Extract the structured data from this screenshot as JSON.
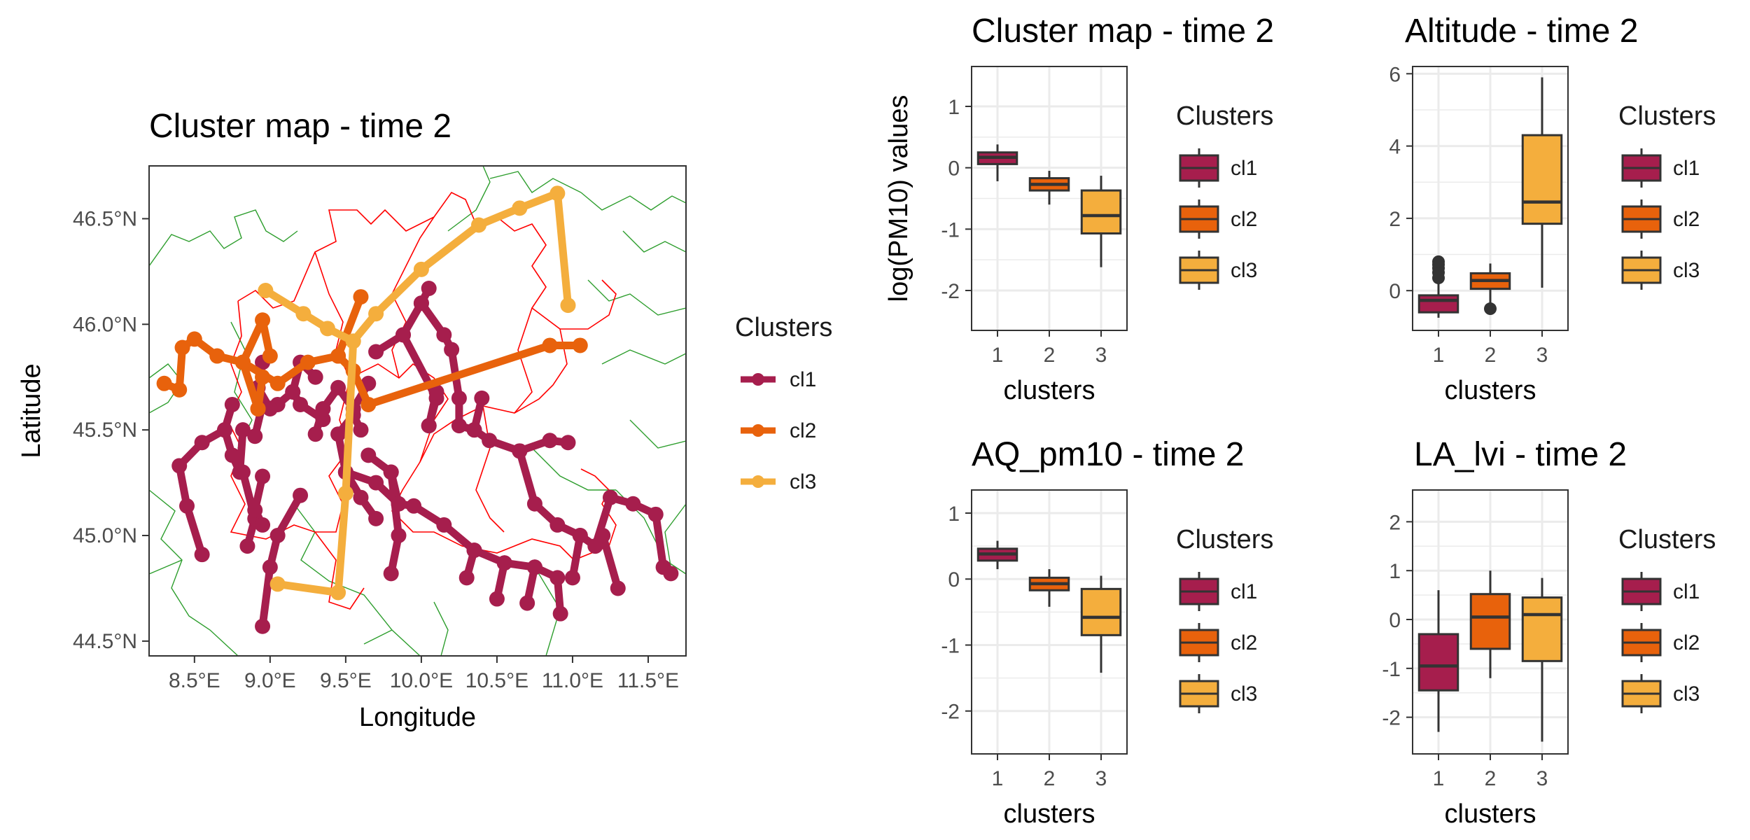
{
  "colors": {
    "cl1": "#A61E4D",
    "cl2": "#E8620C",
    "cl3": "#F4AE3D",
    "box_outline": "#333333",
    "region_border": "#FF0000",
    "province_border": "#2E9E2E",
    "grid": "#EBEBEB",
    "panel_border": "#333333"
  },
  "chart_data": [
    {
      "type": "scatter",
      "subtype": "cluster-network-map",
      "title": "Cluster map - time 2",
      "xlabel": "Longitude",
      "ylabel": "Latitude",
      "xlim": [
        8.2,
        11.75
      ],
      "ylim": [
        44.43,
        46.75
      ],
      "grid": false,
      "x_ticks": [
        {
          "value": 8.5,
          "label": "8.5°E"
        },
        {
          "value": 9.0,
          "label": "9.0°E"
        },
        {
          "value": 9.5,
          "label": "9.5°E"
        },
        {
          "value": 10.0,
          "label": "10.0°E"
        },
        {
          "value": 10.5,
          "label": "10.5°E"
        },
        {
          "value": 11.0,
          "label": "11.0°E"
        },
        {
          "value": 11.5,
          "label": "11.5°E"
        }
      ],
      "y_ticks": [
        {
          "value": 44.5,
          "label": "44.5°N"
        },
        {
          "value": 45.0,
          "label": "45.0°N"
        },
        {
          "value": 45.5,
          "label": "45.5°N"
        },
        {
          "value": 46.0,
          "label": "46.0°N"
        },
        {
          "value": 46.5,
          "label": "46.5°N"
        }
      ],
      "legend": {
        "title": "Clusters",
        "position": "right",
        "entries": [
          "cl1",
          "cl2",
          "cl3"
        ]
      },
      "series": [
        {
          "name": "cl1",
          "color_key": "cl1",
          "paths": [
            [
              [
                8.55,
                44.91
              ],
              [
                8.45,
                45.14
              ],
              [
                8.4,
                45.33
              ],
              [
                8.55,
                45.44
              ],
              [
                8.7,
                45.5
              ],
              [
                8.75,
                45.62
              ]
            ],
            [
              [
                8.7,
                45.5
              ],
              [
                8.75,
                45.38
              ],
              [
                8.8,
                45.3
              ],
              [
                8.82,
                45.5
              ]
            ],
            [
              [
                8.9,
                45.47
              ],
              [
                8.95,
                45.62
              ],
              [
                9.05,
                45.62
              ],
              [
                9.15,
                45.68
              ],
              [
                9.2,
                45.62
              ],
              [
                9.35,
                45.55
              ]
            ],
            [
              [
                9.15,
                45.68
              ],
              [
                9.2,
                45.82
              ],
              [
                9.3,
                45.75
              ]
            ],
            [
              [
                9.0,
                45.6
              ],
              [
                8.92,
                45.7
              ],
              [
                8.95,
                45.82
              ]
            ],
            [
              [
                8.82,
                45.3
              ],
              [
                8.9,
                45.08
              ],
              [
                8.85,
                44.95
              ]
            ],
            [
              [
                8.95,
                45.28
              ],
              [
                8.9,
                45.12
              ],
              [
                8.95,
                45.05
              ]
            ],
            [
              [
                8.95,
                44.57
              ],
              [
                9.0,
                44.85
              ],
              [
                9.05,
                45.0
              ],
              [
                9.2,
                45.19
              ]
            ],
            [
              [
                9.3,
                45.48
              ],
              [
                9.35,
                45.6
              ],
              [
                9.45,
                45.7
              ],
              [
                9.55,
                45.6
              ],
              [
                9.65,
                45.72
              ]
            ],
            [
              [
                9.6,
                45.5
              ],
              [
                9.55,
                45.57
              ],
              [
                9.45,
                45.48
              ],
              [
                9.5,
                45.3
              ]
            ],
            [
              [
                9.5,
                45.3
              ],
              [
                9.6,
                45.18
              ],
              [
                9.7,
                45.08
              ]
            ],
            [
              [
                9.5,
                45.3
              ],
              [
                9.7,
                45.25
              ],
              [
                9.85,
                45.15
              ],
              [
                9.95,
                45.14
              ],
              [
                10.15,
                45.05
              ],
              [
                10.35,
                44.93
              ],
              [
                10.55,
                44.87
              ],
              [
                10.75,
                44.85
              ],
              [
                10.9,
                44.8
              ],
              [
                10.92,
                44.63
              ]
            ],
            [
              [
                9.65,
                45.38
              ],
              [
                9.8,
                45.3
              ],
              [
                9.85,
                45.15
              ]
            ],
            [
              [
                9.8,
                45.3
              ],
              [
                9.85,
                45.0
              ],
              [
                9.8,
                44.82
              ]
            ],
            [
              [
                10.35,
                44.93
              ],
              [
                10.3,
                44.8
              ]
            ],
            [
              [
                10.55,
                44.87
              ],
              [
                10.5,
                44.7
              ]
            ],
            [
              [
                10.75,
                44.85
              ],
              [
                10.7,
                44.68
              ]
            ],
            [
              [
                9.7,
                45.87
              ],
              [
                9.88,
                45.95
              ],
              [
                10.0,
                46.1
              ],
              [
                10.05,
                46.17
              ]
            ],
            [
              [
                9.88,
                45.95
              ],
              [
                10.1,
                45.65
              ],
              [
                10.05,
                45.52
              ]
            ],
            [
              [
                10.05,
                45.52
              ],
              [
                10.1,
                45.68
              ]
            ],
            [
              [
                10.0,
                46.1
              ],
              [
                10.15,
                45.95
              ],
              [
                10.2,
                45.88
              ],
              [
                10.25,
                45.65
              ],
              [
                10.25,
                45.52
              ],
              [
                10.35,
                45.5
              ],
              [
                10.4,
                45.65
              ]
            ],
            [
              [
                10.35,
                45.5
              ],
              [
                10.45,
                45.45
              ],
              [
                10.65,
                45.4
              ],
              [
                10.85,
                45.45
              ],
              [
                10.97,
                45.44
              ]
            ],
            [
              [
                10.65,
                45.4
              ],
              [
                10.75,
                45.15
              ],
              [
                10.9,
                45.05
              ],
              [
                11.05,
                45.0
              ],
              [
                11.0,
                44.8
              ]
            ],
            [
              [
                11.05,
                45.0
              ],
              [
                11.15,
                44.95
              ],
              [
                11.2,
                45.0
              ],
              [
                11.3,
                44.75
              ]
            ],
            [
              [
                11.15,
                44.95
              ],
              [
                11.25,
                45.18
              ],
              [
                11.4,
                45.15
              ],
              [
                11.55,
                45.1
              ],
              [
                11.6,
                44.85
              ],
              [
                11.65,
                44.82
              ]
            ]
          ]
        },
        {
          "name": "cl2",
          "color_key": "cl2",
          "paths": [
            [
              [
                8.3,
                45.72
              ],
              [
                8.4,
                45.69
              ],
              [
                8.42,
                45.89
              ],
              [
                8.5,
                45.93
              ],
              [
                8.65,
                45.85
              ],
              [
                8.82,
                45.82
              ],
              [
                8.95,
                46.02
              ],
              [
                9.0,
                45.85
              ]
            ],
            [
              [
                8.82,
                45.82
              ],
              [
                8.92,
                45.6
              ]
            ],
            [
              [
                8.92,
                45.6
              ],
              [
                8.95,
                45.75
              ]
            ],
            [
              [
                8.82,
                45.82
              ],
              [
                9.05,
                45.72
              ],
              [
                9.25,
                45.82
              ],
              [
                9.45,
                45.85
              ],
              [
                9.6,
                46.13
              ]
            ],
            [
              [
                9.45,
                45.85
              ],
              [
                9.55,
                45.78
              ],
              [
                9.65,
                45.62
              ],
              [
                10.85,
                45.9
              ],
              [
                11.05,
                45.9
              ]
            ]
          ]
        },
        {
          "name": "cl3",
          "color_key": "cl3",
          "paths": [
            [
              [
                8.97,
                46.16
              ],
              [
                9.22,
                46.05
              ],
              [
                9.38,
                45.98
              ],
              [
                9.55,
                45.92
              ],
              [
                9.7,
                46.05
              ],
              [
                10.0,
                46.26
              ],
              [
                10.38,
                46.47
              ],
              [
                10.65,
                46.55
              ],
              [
                10.9,
                46.62
              ],
              [
                10.97,
                46.09
              ]
            ],
            [
              [
                9.55,
                45.92
              ],
              [
                9.5,
                45.2
              ],
              [
                9.45,
                44.73
              ],
              [
                9.05,
                44.77
              ]
            ]
          ]
        }
      ]
    },
    {
      "type": "box",
      "title": "Cluster map - time 2",
      "xlabel": "clusters",
      "ylabel": "log(PM10) values",
      "categories": [
        "1",
        "2",
        "3"
      ],
      "ylim": [
        -2.65,
        1.65
      ],
      "y_ticks": [
        -2,
        -1,
        0,
        1
      ],
      "y_tick_labels": [
        "-2",
        "-1",
        "0",
        "1"
      ],
      "legend": {
        "title": "Clusters",
        "position": "right",
        "entries": [
          "cl1",
          "cl2",
          "cl3"
        ]
      },
      "boxes": [
        {
          "name": "cl1",
          "color_key": "cl1",
          "min": -0.22,
          "q1": 0.06,
          "median": 0.17,
          "q3": 0.25,
          "max": 0.38,
          "outliers": []
        },
        {
          "name": "cl2",
          "color_key": "cl2",
          "min": -0.6,
          "q1": -0.37,
          "median": -0.27,
          "q3": -0.17,
          "max": -0.05,
          "outliers": []
        },
        {
          "name": "cl3",
          "color_key": "cl3",
          "min": -1.62,
          "q1": -1.07,
          "median": -0.78,
          "q3": -0.37,
          "max": -0.13,
          "outliers": []
        }
      ]
    },
    {
      "type": "box",
      "title": "Altitude - time 2",
      "xlabel": "clusters",
      "ylabel": "",
      "categories": [
        "1",
        "2",
        "3"
      ],
      "ylim": [
        -1.1,
        6.2
      ],
      "y_ticks": [
        0,
        2,
        4,
        6
      ],
      "y_tick_labels": [
        "0",
        "2",
        "4",
        "6"
      ],
      "legend": {
        "title": "Clusters",
        "position": "right",
        "entries": [
          "cl1",
          "cl2",
          "cl3"
        ]
      },
      "boxes": [
        {
          "name": "cl1",
          "color_key": "cl1",
          "min": -0.75,
          "q1": -0.6,
          "median": -0.27,
          "q3": -0.13,
          "max": 0.22,
          "outliers": [
            0.35,
            0.5,
            0.62,
            0.72,
            0.8
          ]
        },
        {
          "name": "cl2",
          "color_key": "cl2",
          "min": -0.35,
          "q1": 0.05,
          "median": 0.28,
          "q3": 0.48,
          "max": 0.75,
          "outliers": [
            -0.5
          ]
        },
        {
          "name": "cl3",
          "color_key": "cl3",
          "min": 0.08,
          "q1": 1.85,
          "median": 2.45,
          "q3": 4.3,
          "max": 5.9,
          "outliers": []
        }
      ]
    },
    {
      "type": "box",
      "title": "AQ_pm10 - time 2",
      "xlabel": "clusters",
      "ylabel": "",
      "categories": [
        "1",
        "2",
        "3"
      ],
      "ylim": [
        -2.65,
        1.35
      ],
      "y_ticks": [
        -2,
        -1,
        0,
        1
      ],
      "y_tick_labels": [
        "-2",
        "-1",
        "0",
        "1"
      ],
      "legend": {
        "title": "Clusters",
        "position": "right",
        "entries": [
          "cl1",
          "cl2",
          "cl3"
        ]
      },
      "boxes": [
        {
          "name": "cl1",
          "color_key": "cl1",
          "min": 0.15,
          "q1": 0.28,
          "median": 0.38,
          "q3": 0.46,
          "max": 0.58,
          "outliers": []
        },
        {
          "name": "cl2",
          "color_key": "cl2",
          "min": -0.42,
          "q1": -0.17,
          "median": -0.07,
          "q3": 0.02,
          "max": 0.15,
          "outliers": []
        },
        {
          "name": "cl3",
          "color_key": "cl3",
          "min": -1.42,
          "q1": -0.85,
          "median": -0.58,
          "q3": -0.15,
          "max": 0.05,
          "outliers": []
        }
      ]
    },
    {
      "type": "box",
      "title": "LA_lvi - time 2",
      "xlabel": "clusters",
      "ylabel": "",
      "categories": [
        "1",
        "2",
        "3"
      ],
      "ylim": [
        -2.75,
        2.65
      ],
      "y_ticks": [
        -2,
        -1,
        0,
        1,
        2
      ],
      "y_tick_labels": [
        "-2",
        "-1",
        "0",
        "1",
        "2"
      ],
      "legend": {
        "title": "Clusters",
        "position": "right",
        "entries": [
          "cl1",
          "cl2",
          "cl3"
        ]
      },
      "boxes": [
        {
          "name": "cl1",
          "color_key": "cl1",
          "min": -2.3,
          "q1": -1.45,
          "median": -0.95,
          "q3": -0.3,
          "max": 0.6,
          "outliers": []
        },
        {
          "name": "cl2",
          "color_key": "cl2",
          "min": -1.2,
          "q1": -0.6,
          "median": 0.05,
          "q3": 0.52,
          "max": 1.0,
          "outliers": []
        },
        {
          "name": "cl3",
          "color_key": "cl3",
          "min": -2.5,
          "q1": -0.85,
          "median": 0.1,
          "q3": 0.45,
          "max": 0.85,
          "outliers": []
        }
      ]
    }
  ]
}
